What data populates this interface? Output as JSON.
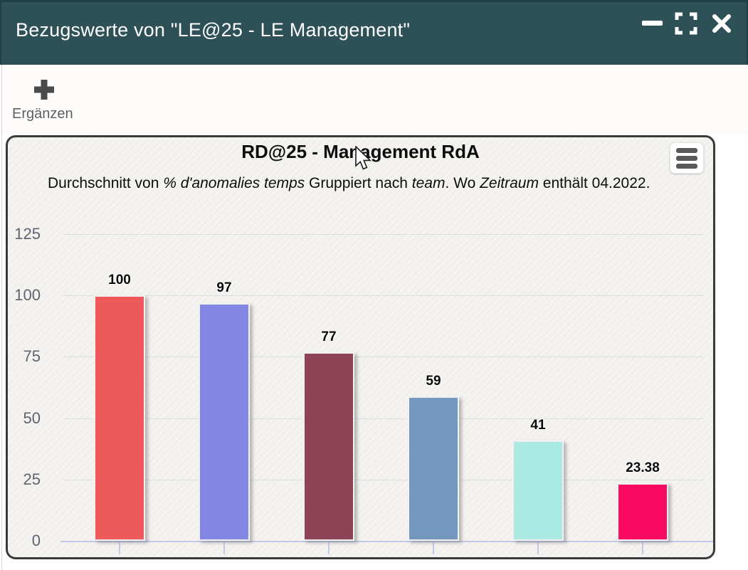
{
  "window": {
    "title": "Bezugswerte von \"LE@25 - LE Management\"",
    "header_color": "#2d5156"
  },
  "toolbar": {
    "add_label": "Ergänzen"
  },
  "chart_data": {
    "type": "bar",
    "title": "RD@25 - Management RdA",
    "subtitle": "Durchschnitt von % d'anomalies temps Gruppiert nach team. Wo Zeitraum enthält 04.2022.",
    "subtitle_parts": [
      {
        "text": "Durchschnitt von ",
        "italic": false
      },
      {
        "text": "% d'anomalies temps",
        "italic": true
      },
      {
        "text": " Gruppiert nach ",
        "italic": false
      },
      {
        "text": "team",
        "italic": true
      },
      {
        "text": ". Wo ",
        "italic": false
      },
      {
        "text": "Zeitraum",
        "italic": true
      },
      {
        "text": " enthält 04.2022.",
        "italic": false
      }
    ],
    "values": [
      100,
      97,
      77,
      59,
      41,
      23.38
    ],
    "value_labels": [
      "100",
      "97",
      "77",
      "59",
      "41",
      "23.38"
    ],
    "bar_colors": [
      "#ee5a5a",
      "#8187e2",
      "#8d4355",
      "#7496bf",
      "#a9e9e1",
      "#fa0a60"
    ],
    "yticks": [
      0,
      25,
      50,
      75,
      100,
      125
    ],
    "ylim": [
      0,
      125
    ],
    "grid": true,
    "legend": "none",
    "x_category_labels_visible": false
  }
}
